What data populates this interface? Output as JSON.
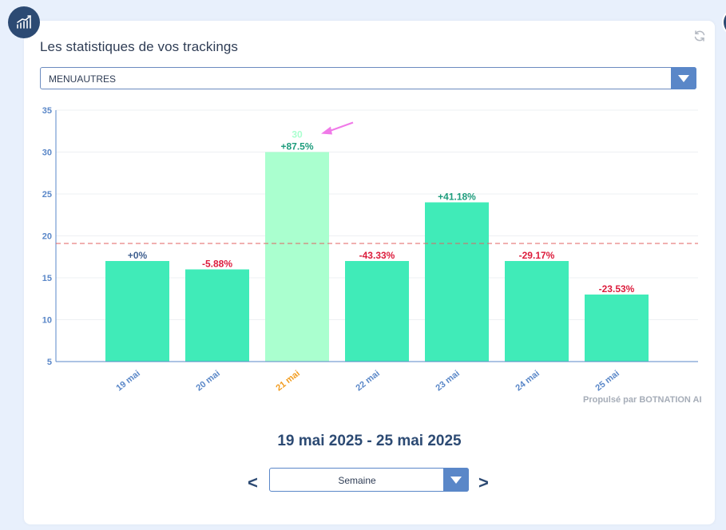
{
  "header": {
    "title": "Les statistiques de vos trackings",
    "badge_icon": "line-chart-icon",
    "refresh_icon": "refresh-icon"
  },
  "filter": {
    "selected": "MENUAUTRES"
  },
  "chart_data": {
    "type": "bar",
    "categories": [
      "19 mai",
      "20 mai",
      "21 mai",
      "22 mai",
      "23 mai",
      "24 mai",
      "25 mai"
    ],
    "values": [
      17,
      16,
      30,
      17,
      24,
      17,
      13
    ],
    "change_labels": [
      "+0%",
      "-5.88%",
      "+87.5%",
      "-43.33%",
      "+41.18%",
      "-29.17%",
      "-23.53%"
    ],
    "highlight_index": 2,
    "highlight_value_label": "30",
    "average_line": 19.1,
    "ylim": [
      5,
      35
    ],
    "yticks": [
      "5",
      "10",
      "15",
      "20",
      "25",
      "30",
      "35"
    ],
    "grid": true,
    "colors": {
      "bar": "#40ebb8",
      "bar_highlight": "#aaffcf",
      "positive": "#1d9c7c",
      "negative": "#dc1c3c",
      "neutral": "#3f5f8f",
      "axis": "#5a87c8",
      "highlight_tick": "#f29c1f",
      "average": "#e06060",
      "arrow": "#f07ae8"
    }
  },
  "footer": {
    "powered_prefix": "Propulsé par",
    "powered_brand": "BOTNATION AI",
    "period": "19 mai 2025 - 25 mai 2025",
    "prev": "<",
    "next": ">",
    "granularity": "Semaine"
  }
}
